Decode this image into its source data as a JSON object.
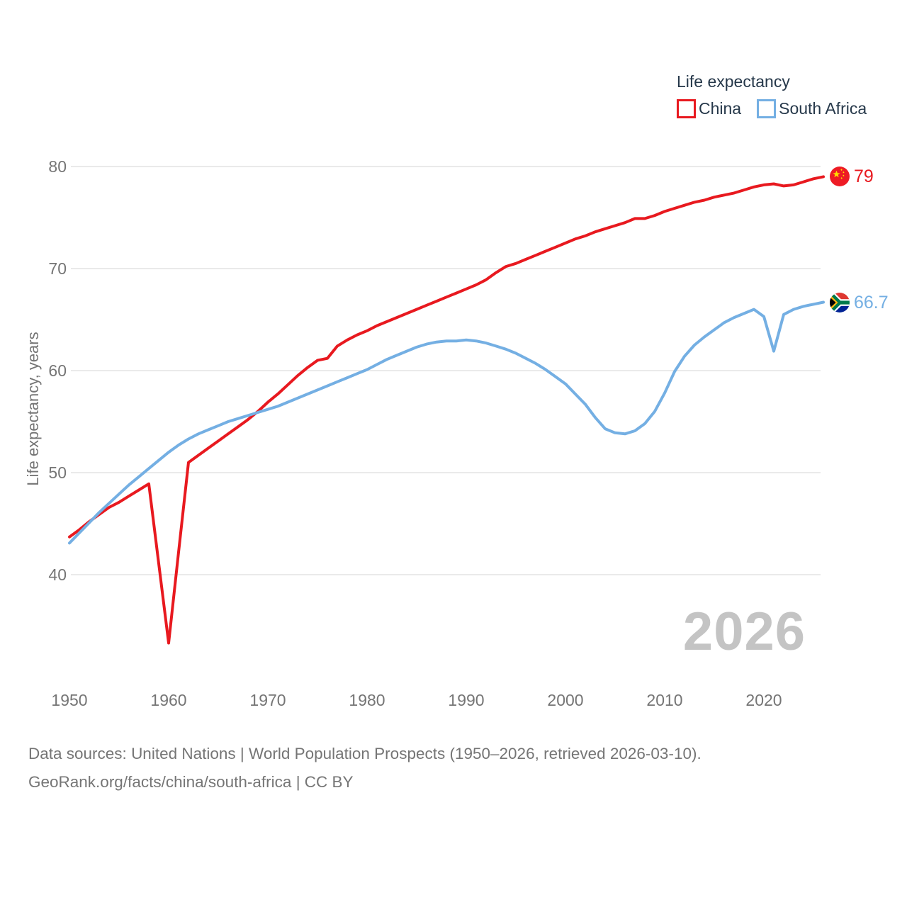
{
  "legend": {
    "title": "Life expectancy",
    "series": [
      {
        "label": "China",
        "color": "#e8191f"
      },
      {
        "label": "South Africa",
        "color": "#74afe3"
      }
    ]
  },
  "chart_data": {
    "type": "line",
    "title": "Life expectancy",
    "ylabel": "Life expectancy, years",
    "watermark": "2026",
    "grid": "horizontal-only",
    "legend_position": "top-right",
    "x_range": [
      1950,
      2026
    ],
    "ylim": [
      31,
      82
    ],
    "yticks": [
      40,
      50,
      60,
      70,
      80
    ],
    "xticks": [
      1950,
      1960,
      1970,
      1980,
      1990,
      2000,
      2010,
      2020
    ],
    "x_step": 1,
    "series": [
      {
        "name": "China",
        "color": "#e8191f",
        "end_label": "79",
        "flag": "china-flag-icon",
        "values": [
          43.7,
          44.4,
          45.2,
          45.9,
          46.6,
          47.1,
          47.7,
          48.3,
          48.9,
          41.1,
          33.3,
          42.2,
          51.0,
          51.7,
          52.4,
          53.1,
          53.8,
          54.5,
          55.2,
          56.0,
          56.9,
          57.7,
          58.6,
          59.5,
          60.3,
          61.0,
          61.2,
          62.4,
          63.0,
          63.5,
          63.9,
          64.4,
          64.8,
          65.2,
          65.6,
          66.0,
          66.4,
          66.8,
          67.2,
          67.6,
          68.0,
          68.4,
          68.9,
          69.6,
          70.2,
          70.5,
          70.9,
          71.3,
          71.7,
          72.1,
          72.5,
          72.9,
          73.2,
          73.6,
          73.9,
          74.2,
          74.5,
          74.9,
          74.9,
          75.2,
          75.6,
          75.9,
          76.2,
          76.5,
          76.7,
          77.0,
          77.2,
          77.4,
          77.7,
          78.0,
          78.2,
          78.3,
          78.1,
          78.2,
          78.5,
          78.8,
          79.0
        ]
      },
      {
        "name": "South Africa",
        "color": "#74afe3",
        "end_label": "66.7",
        "flag": "south-africa-flag-icon",
        "values": [
          43.1,
          44.1,
          45.1,
          46.1,
          47.0,
          47.9,
          48.8,
          49.6,
          50.4,
          51.2,
          52.0,
          52.7,
          53.3,
          53.8,
          54.2,
          54.6,
          55.0,
          55.3,
          55.6,
          55.9,
          56.2,
          56.5,
          56.9,
          57.3,
          57.7,
          58.1,
          58.5,
          58.9,
          59.3,
          59.7,
          60.1,
          60.6,
          61.1,
          61.5,
          61.9,
          62.3,
          62.6,
          62.8,
          62.9,
          62.9,
          63.0,
          62.9,
          62.7,
          62.4,
          62.1,
          61.7,
          61.2,
          60.7,
          60.1,
          59.4,
          58.7,
          57.7,
          56.7,
          55.4,
          54.3,
          53.9,
          53.8,
          54.1,
          54.8,
          56.0,
          57.8,
          59.9,
          61.4,
          62.5,
          63.3,
          64.0,
          64.7,
          65.2,
          65.6,
          66.0,
          65.3,
          61.9,
          65.5,
          66.0,
          66.3,
          66.5,
          66.7
        ]
      }
    ],
    "colors": {
      "gridline": "#e4e4e4",
      "tick_text": "#757575",
      "legend_text": "#26384a",
      "watermark_text": "#c4c4c4"
    }
  },
  "footer": {
    "line1": "Data sources: United Nations | World Population Prospects (1950–2026, retrieved 2026-03-10).",
    "line2": "GeoRank.org/facts/china/south-africa | CC BY"
  }
}
